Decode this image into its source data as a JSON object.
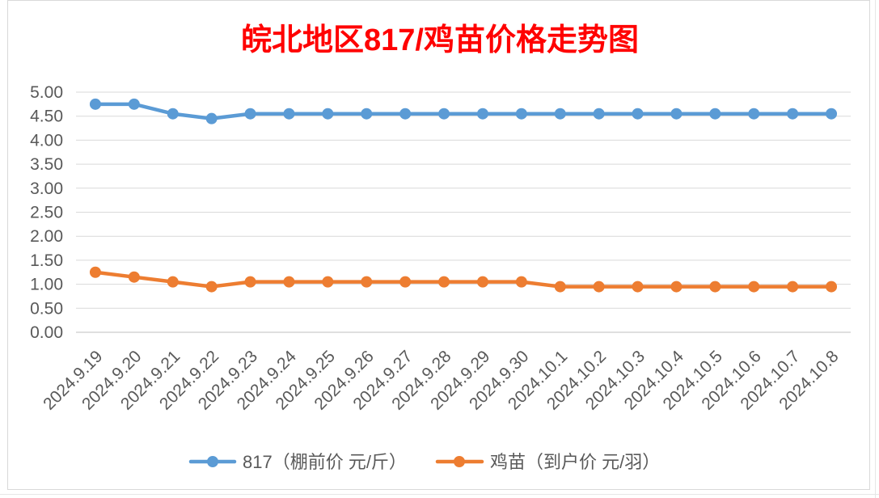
{
  "chart_data": {
    "type": "line",
    "title": "皖北地区817/鸡苗价格走势图",
    "categories": [
      "2024.9.19",
      "2024.9.20",
      "2024.9.21",
      "2024.9.22",
      "2024.9.23",
      "2024.9.24",
      "2024.9.25",
      "2024.9.26",
      "2024.9.27",
      "2024.9.28",
      "2024.9.29",
      "2024.9.30",
      "2024.10.1",
      "2024.10.2",
      "2024.10.3",
      "2024.10.4",
      "2024.10.5",
      "2024.10.6",
      "2024.10.7",
      "2024.10.8"
    ],
    "series": [
      {
        "name": "817（棚前价 元/斤）",
        "color": "#5B9BD5",
        "values": [
          4.75,
          4.75,
          4.55,
          4.45,
          4.55,
          4.55,
          4.55,
          4.55,
          4.55,
          4.55,
          4.55,
          4.55,
          4.55,
          4.55,
          4.55,
          4.55,
          4.55,
          4.55,
          4.55,
          4.55
        ]
      },
      {
        "name": "鸡苗（到户价 元/羽）",
        "color": "#ED7D31",
        "values": [
          1.25,
          1.15,
          1.05,
          0.95,
          1.05,
          1.05,
          1.05,
          1.05,
          1.05,
          1.05,
          1.05,
          1.05,
          0.95,
          0.95,
          0.95,
          0.95,
          0.95,
          0.95,
          0.95,
          0.95
        ]
      }
    ],
    "ylim": [
      0,
      5
    ],
    "yticks": [
      "0.00",
      "0.50",
      "1.00",
      "1.50",
      "2.00",
      "2.50",
      "3.00",
      "3.50",
      "4.00",
      "4.50",
      "5.00"
    ],
    "grid": true,
    "legend": "bottom"
  },
  "colors": {
    "title": "#FF0000",
    "gridline": "#D9D9D9",
    "tick_label": "#595959"
  }
}
